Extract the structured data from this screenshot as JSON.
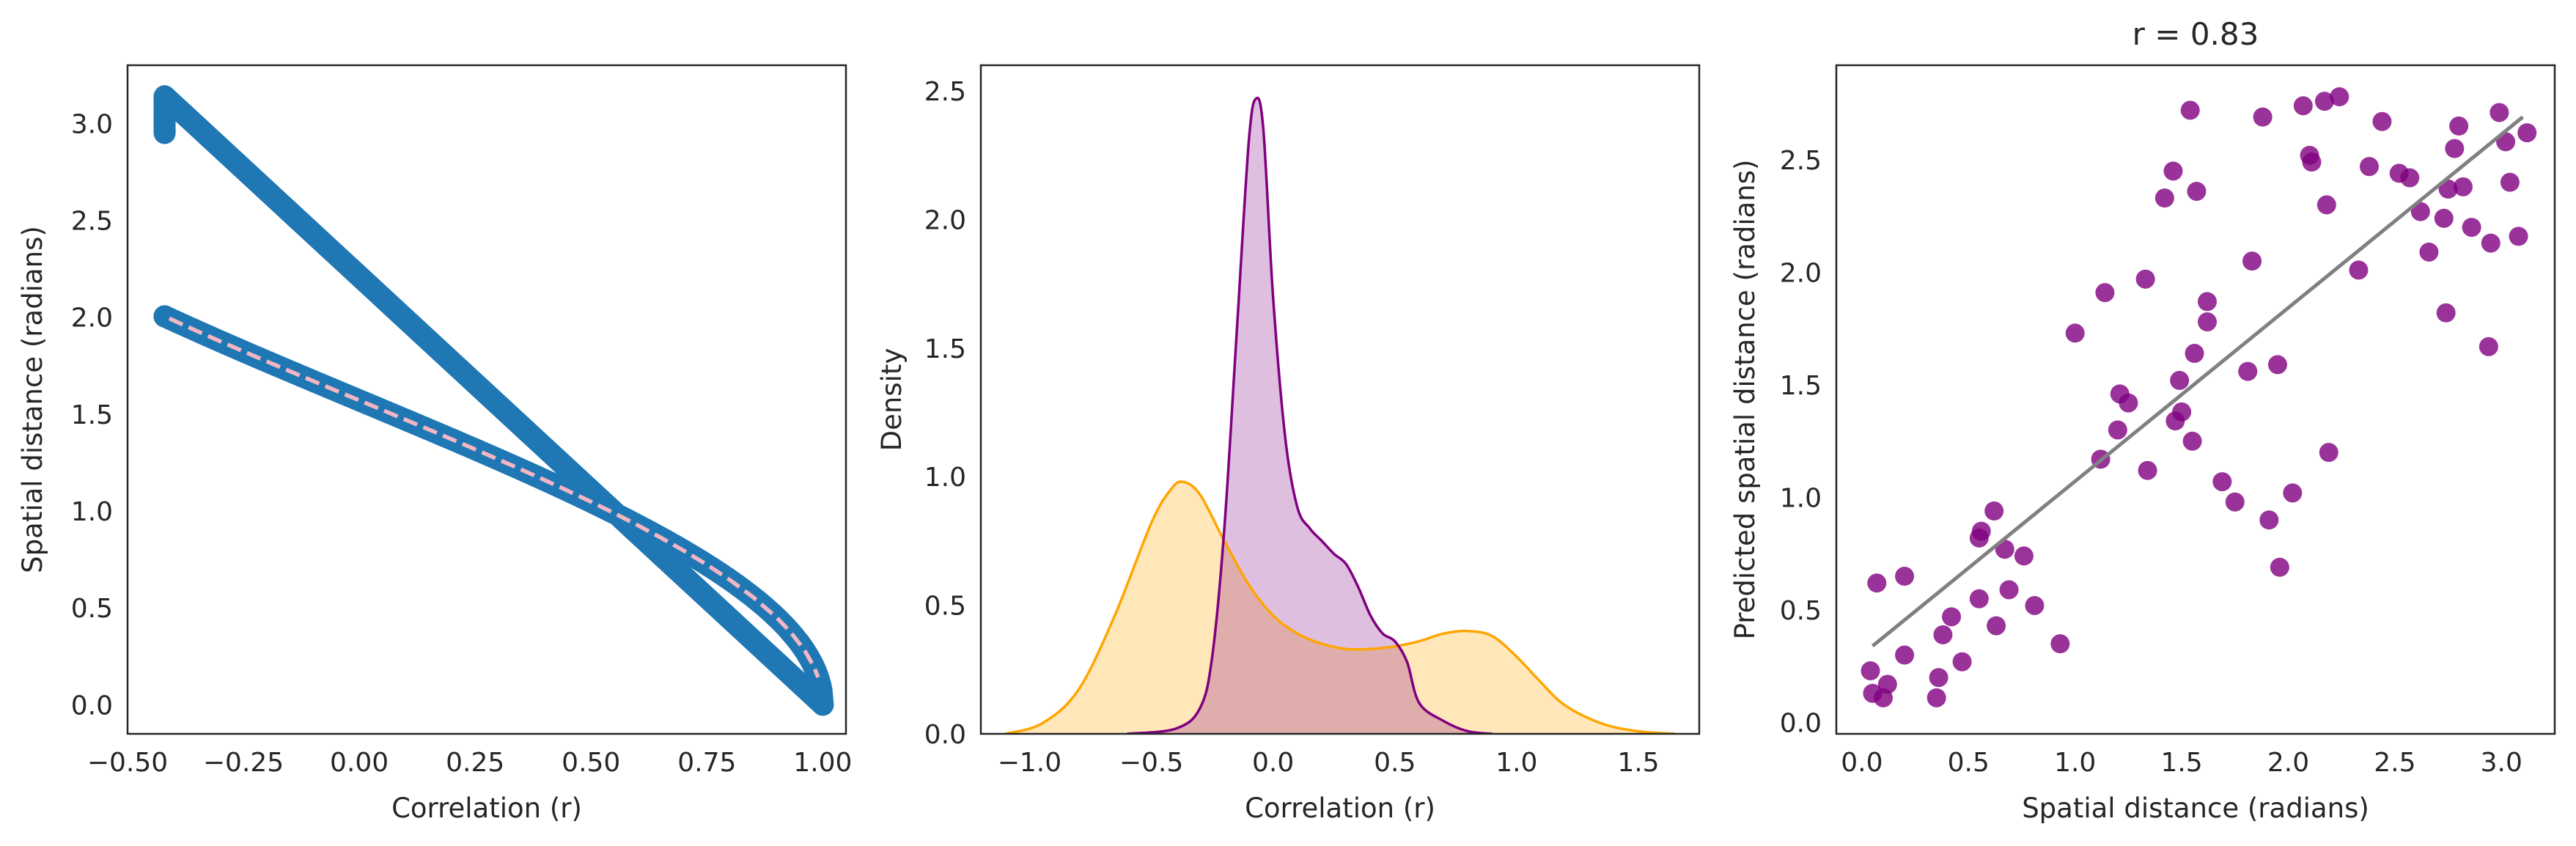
{
  "colors": {
    "panel1_points": "#1f77b4",
    "panel1_fit_line": "#f4b6c2",
    "purple": "#800080",
    "purple_fill": "#e0bfe0",
    "orange": "#ffa500",
    "orange_fill": "#fee4b6",
    "overlap_fill": "#e6b5a4",
    "regression_line": "#808080",
    "frame": "#262626"
  },
  "chart_data": [
    {
      "type": "scatter",
      "title": "",
      "xlabel": "Correlation (r)",
      "ylabel": "Spatial distance (radians)",
      "xlim": [
        -0.5,
        1.05
      ],
      "ylim": [
        -0.15,
        3.3
      ],
      "xticks": [
        -0.5,
        -0.25,
        0.0,
        0.25,
        0.5,
        0.75,
        1.0
      ],
      "xtick_labels": [
        "−0.50",
        "−0.25",
        "0.00",
        "0.25",
        "0.50",
        "0.75",
        "1.00"
      ],
      "yticks": [
        0.0,
        0.5,
        1.0,
        1.5,
        2.0,
        2.5,
        3.0
      ],
      "ytick_labels": [
        "0.0",
        "0.5",
        "1.0",
        "1.5",
        "2.0",
        "2.5",
        "3.0"
      ],
      "grid": false,
      "legend": "none",
      "relationship": "distance = arccos(r)",
      "x_range_of_points": [
        -0.42,
        1.0
      ],
      "series": [
        {
          "kind": "points",
          "x": [
            -0.42,
            -0.42,
            -0.42,
            -0.42,
            -0.42,
            -0.42,
            -0.42,
            -0.42,
            -0.419,
            -0.417,
            -0.413,
            -0.408,
            -0.4,
            -0.39,
            -0.375,
            -0.355,
            -0.33,
            -0.3,
            -0.26,
            -0.22,
            -0.18,
            -0.14,
            -0.1,
            -0.06,
            -0.02,
            0.02,
            0.06,
            0.1,
            0.14,
            0.18,
            0.22,
            0.26,
            0.3,
            0.34,
            0.38,
            0.42,
            0.46,
            0.5,
            0.54,
            0.58,
            0.62,
            0.66,
            0.7,
            0.74,
            0.78,
            0.82,
            0.86,
            0.9,
            0.93,
            0.95,
            0.97,
            0.98,
            0.99,
            0.995,
            1.0
          ]
        },
        {
          "kind": "dashed-fit",
          "x": [
            -0.41,
            -0.4,
            -0.38,
            -0.35,
            -0.3,
            -0.25,
            -0.2,
            -0.15,
            -0.1,
            -0.05,
            0.0,
            0.05,
            0.1,
            0.15,
            0.2,
            0.25,
            0.3,
            0.35,
            0.4,
            0.45,
            0.5,
            0.55,
            0.6,
            0.65,
            0.7,
            0.75,
            0.8,
            0.85,
            0.9,
            0.93,
            0.96,
            0.98,
            0.99
          ]
        }
      ]
    },
    {
      "type": "area",
      "title": "",
      "xlabel": "Correlation (r)",
      "ylabel": "Density",
      "xlim": [
        -1.2,
        1.75
      ],
      "ylim": [
        0,
        2.6
      ],
      "xticks": [
        -1.0,
        -0.5,
        0.0,
        0.5,
        1.0,
        1.5
      ],
      "xtick_labels": [
        "−1.0",
        "−0.5",
        "0.0",
        "0.5",
        "1.0",
        "1.5"
      ],
      "yticks": [
        0.0,
        0.5,
        1.0,
        1.5,
        2.0,
        2.5
      ],
      "ytick_labels": [
        "0.0",
        "0.5",
        "1.0",
        "1.5",
        "2.0",
        "2.5"
      ],
      "grid": false,
      "legend": "none",
      "series": [
        {
          "color": "purple",
          "x": [
            -0.6,
            -0.4,
            -0.3,
            -0.25,
            -0.2,
            -0.15,
            -0.1,
            -0.07,
            -0.04,
            0.0,
            0.05,
            0.1,
            0.15,
            0.2,
            0.25,
            0.3,
            0.35,
            0.4,
            0.45,
            0.5,
            0.55,
            0.6,
            0.7,
            0.8,
            0.9
          ],
          "y": [
            0.0,
            0.02,
            0.1,
            0.3,
            0.8,
            1.55,
            2.3,
            2.47,
            2.35,
            1.7,
            1.15,
            0.88,
            0.8,
            0.75,
            0.7,
            0.66,
            0.57,
            0.46,
            0.39,
            0.36,
            0.28,
            0.12,
            0.05,
            0.01,
            0.0
          ]
        },
        {
          "color": "orange",
          "x": [
            -1.1,
            -0.95,
            -0.8,
            -0.65,
            -0.5,
            -0.42,
            -0.37,
            -0.3,
            -0.2,
            -0.1,
            0.0,
            0.1,
            0.2,
            0.3,
            0.4,
            0.5,
            0.6,
            0.7,
            0.8,
            0.9,
            1.0,
            1.1,
            1.2,
            1.35,
            1.5,
            1.65
          ],
          "y": [
            0.0,
            0.04,
            0.17,
            0.46,
            0.82,
            0.95,
            0.98,
            0.93,
            0.75,
            0.58,
            0.46,
            0.39,
            0.35,
            0.33,
            0.33,
            0.34,
            0.36,
            0.39,
            0.4,
            0.38,
            0.3,
            0.2,
            0.11,
            0.04,
            0.01,
            0.0
          ]
        }
      ]
    },
    {
      "type": "scatter",
      "title": "r = 0.83",
      "xlabel": "Spatial distance (radians)",
      "ylabel": "Predicted spatial distance (radians)",
      "xlim": [
        -0.12,
        3.25
      ],
      "ylim": [
        -0.05,
        2.92
      ],
      "xticks": [
        0.0,
        0.5,
        1.0,
        1.5,
        2.0,
        2.5,
        3.0
      ],
      "xtick_labels": [
        "0.0",
        "0.5",
        "1.0",
        "1.5",
        "2.0",
        "2.5",
        "3.0"
      ],
      "yticks": [
        0.0,
        0.5,
        1.0,
        1.5,
        2.0,
        2.5
      ],
      "ytick_labels": [
        "0.0",
        "0.5",
        "1.0",
        "1.5",
        "2.0",
        "2.5"
      ],
      "grid": false,
      "legend": "none",
      "regression_line": {
        "x": [
          0.05,
          3.1
        ],
        "y": [
          0.34,
          2.69
        ]
      },
      "points": [
        [
          0.04,
          0.23
        ],
        [
          0.05,
          0.13
        ],
        [
          0.07,
          0.62
        ],
        [
          0.1,
          0.11
        ],
        [
          0.12,
          0.17
        ],
        [
          0.2,
          0.65
        ],
        [
          0.2,
          0.3
        ],
        [
          0.35,
          0.11
        ],
        [
          0.36,
          0.2
        ],
        [
          0.38,
          0.39
        ],
        [
          0.42,
          0.47
        ],
        [
          0.47,
          0.27
        ],
        [
          0.55,
          0.55
        ],
        [
          0.55,
          0.82
        ],
        [
          0.56,
          0.85
        ],
        [
          0.62,
          0.94
        ],
        [
          0.63,
          0.43
        ],
        [
          0.67,
          0.77
        ],
        [
          0.69,
          0.59
        ],
        [
          0.76,
          0.74
        ],
        [
          0.81,
          0.52
        ],
        [
          0.93,
          0.35
        ],
        [
          1.0,
          1.73
        ],
        [
          1.12,
          1.17
        ],
        [
          1.14,
          1.91
        ],
        [
          1.2,
          1.3
        ],
        [
          1.21,
          1.46
        ],
        [
          1.25,
          1.42
        ],
        [
          1.33,
          1.97
        ],
        [
          1.34,
          1.12
        ],
        [
          1.42,
          2.33
        ],
        [
          1.46,
          2.45
        ],
        [
          1.47,
          1.34
        ],
        [
          1.49,
          1.52
        ],
        [
          1.5,
          1.38
        ],
        [
          1.54,
          2.72
        ],
        [
          1.55,
          1.25
        ],
        [
          1.56,
          1.64
        ],
        [
          1.57,
          2.36
        ],
        [
          1.62,
          1.78
        ],
        [
          1.62,
          1.87
        ],
        [
          1.69,
          1.07
        ],
        [
          1.75,
          0.98
        ],
        [
          1.81,
          1.56
        ],
        [
          1.83,
          2.05
        ],
        [
          1.88,
          2.69
        ],
        [
          1.91,
          0.9
        ],
        [
          1.95,
          1.59
        ],
        [
          1.96,
          0.69
        ],
        [
          2.02,
          1.02
        ],
        [
          2.07,
          2.74
        ],
        [
          2.1,
          2.52
        ],
        [
          2.11,
          2.49
        ],
        [
          2.17,
          2.76
        ],
        [
          2.18,
          2.3
        ],
        [
          2.19,
          1.2
        ],
        [
          2.24,
          2.78
        ],
        [
          2.33,
          2.01
        ],
        [
          2.38,
          2.47
        ],
        [
          2.44,
          2.67
        ],
        [
          2.52,
          2.44
        ],
        [
          2.57,
          2.42
        ],
        [
          2.62,
          2.27
        ],
        [
          2.66,
          2.09
        ],
        [
          2.73,
          2.24
        ],
        [
          2.74,
          1.82
        ],
        [
          2.75,
          2.37
        ],
        [
          2.78,
          2.55
        ],
        [
          2.8,
          2.65
        ],
        [
          2.82,
          2.38
        ],
        [
          2.86,
          2.2
        ],
        [
          2.94,
          1.67
        ],
        [
          2.95,
          2.13
        ],
        [
          2.99,
          2.71
        ],
        [
          3.02,
          2.58
        ],
        [
          3.04,
          2.4
        ],
        [
          3.08,
          2.16
        ],
        [
          3.12,
          2.62
        ]
      ]
    }
  ]
}
